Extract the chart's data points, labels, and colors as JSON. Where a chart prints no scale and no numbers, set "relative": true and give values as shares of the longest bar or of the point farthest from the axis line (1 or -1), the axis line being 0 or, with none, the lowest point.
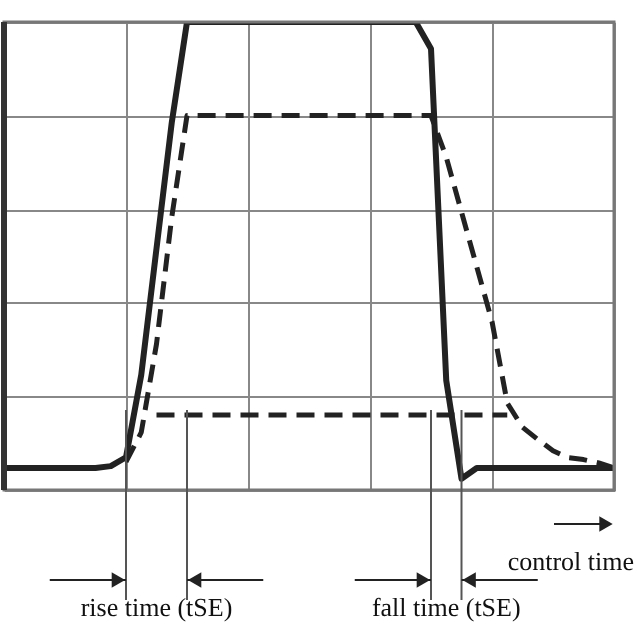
{
  "chart_data": {
    "type": "line",
    "relative": true,
    "grid": true,
    "categories": [
      null,
      null,
      null,
      null,
      null,
      null,
      null,
      null,
      null,
      null,
      null,
      null,
      null,
      null,
      null,
      null,
      null,
      null,
      null,
      null,
      null,
      null,
      null,
      null,
      null,
      null,
      null,
      null,
      null,
      null,
      null,
      null,
      null,
      null,
      null,
      null,
      null,
      null,
      null,
      null,
      null
    ],
    "series": [
      {
        "color": "#222222",
        "line_style": "solid",
        "values": [
          0.047,
          0.047,
          0.047,
          0.047,
          0.047,
          0.047,
          0.047,
          0.051,
          0.07,
          0.246,
          0.516,
          0.785,
          1,
          1,
          1,
          1,
          1,
          1,
          1,
          1,
          1,
          1,
          1,
          1,
          1,
          1,
          1,
          1,
          0.943,
          0.234,
          0.024,
          0.047,
          0.047,
          0.047,
          0.047,
          0.047,
          0.047,
          0.047,
          0.047,
          0.047,
          0.047
        ]
      },
      {
        "color": "#222222",
        "line_style": "dashed",
        "values": [
          null,
          null,
          null,
          null,
          null,
          null,
          null,
          null,
          0.06,
          0.123,
          0.312,
          0.583,
          0.8,
          0.8,
          0.8,
          0.8,
          0.8,
          0.8,
          0.8,
          0.8,
          0.8,
          0.8,
          0.8,
          0.8,
          0.8,
          0.8,
          0.8,
          0.8,
          0.8,
          0.711,
          0.594,
          0.477,
          0.36,
          0.186,
          0.134,
          0.108,
          0.084,
          0.069,
          0.065,
          0.058,
          0.047
        ]
      },
      {
        "color": "#222222",
        "line_style": "dashed",
        "values": [
          null,
          null,
          null,
          null,
          null,
          null,
          null,
          null,
          null,
          null,
          0.16,
          0.16,
          0.16,
          0.16,
          0.16,
          0.16,
          0.16,
          0.16,
          0.16,
          0.16,
          0.16,
          0.16,
          0.16,
          0.16,
          0.16,
          0.16,
          0.16,
          0.16,
          0.16,
          0.16,
          0.16,
          0.16,
          0.16,
          0.16,
          null,
          null,
          null,
          null,
          null,
          null,
          null
        ]
      }
    ],
    "annotations": [
      "rise time (tSE)",
      "fall time (tSE)",
      "control time"
    ]
  }
}
